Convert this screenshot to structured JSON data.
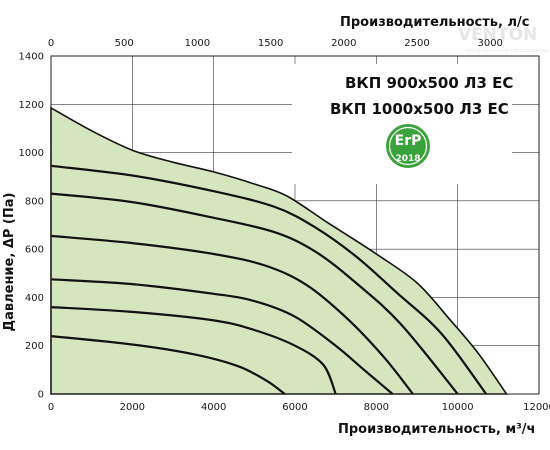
{
  "chart_data": {
    "type": "line",
    "title_lines": [
      "ВКП 900x500 Л3 ЕС",
      "ВКП 1000x500 Л3 ЕС"
    ],
    "xlabel": "Производительность, м³/ч",
    "x2label": "Производительность, л/с",
    "ylabel": "Давление, ΔР (Па)",
    "xlim": [
      0,
      12000
    ],
    "x2lim": [
      0,
      3333.33
    ],
    "ylim": [
      0,
      1400
    ],
    "x_ticks": [
      0,
      2000,
      4000,
      6000,
      8000,
      10000,
      12000
    ],
    "x2_ticks": [
      0,
      500,
      1000,
      1500,
      2000,
      2500,
      3000
    ],
    "y_ticks": [
      0,
      200,
      400,
      600,
      800,
      1000,
      1200,
      1400
    ],
    "grid": true,
    "fill_color": "#d5e6be",
    "line_color": "#111111",
    "badge": {
      "top": "ErP",
      "bottom": "2018",
      "color": "#3aa23a"
    },
    "watermark": {
      "main": "VENTON",
      "sub": "вентиляционное оборудование"
    },
    "envelope": [
      {
        "x": 0,
        "y": 1185
      },
      {
        "x": 1000,
        "y": 1090
      },
      {
        "x": 2000,
        "y": 1010
      },
      {
        "x": 3000,
        "y": 960
      },
      {
        "x": 4000,
        "y": 920
      },
      {
        "x": 5000,
        "y": 870
      },
      {
        "x": 5800,
        "y": 820
      },
      {
        "x": 6800,
        "y": 710
      },
      {
        "x": 8000,
        "y": 580
      },
      {
        "x": 9000,
        "y": 460
      },
      {
        "x": 9800,
        "y": 310
      },
      {
        "x": 10500,
        "y": 170
      },
      {
        "x": 11200,
        "y": 0
      }
    ],
    "series": [
      {
        "values": [
          {
            "x": 0,
            "y": 945
          },
          {
            "x": 2000,
            "y": 905
          },
          {
            "x": 4000,
            "y": 840
          },
          {
            "x": 5500,
            "y": 775
          },
          {
            "x": 6500,
            "y": 690
          },
          {
            "x": 7500,
            "y": 570
          },
          {
            "x": 8500,
            "y": 420
          },
          {
            "x": 9600,
            "y": 250
          },
          {
            "x": 10700,
            "y": 0
          }
        ]
      },
      {
        "values": [
          {
            "x": 0,
            "y": 830
          },
          {
            "x": 2000,
            "y": 795
          },
          {
            "x": 4000,
            "y": 730
          },
          {
            "x": 5500,
            "y": 670
          },
          {
            "x": 6500,
            "y": 590
          },
          {
            "x": 7500,
            "y": 460
          },
          {
            "x": 8600,
            "y": 290
          },
          {
            "x": 10000,
            "y": 0
          }
        ]
      },
      {
        "values": [
          {
            "x": 0,
            "y": 655
          },
          {
            "x": 2000,
            "y": 625
          },
          {
            "x": 4000,
            "y": 580
          },
          {
            "x": 5300,
            "y": 530
          },
          {
            "x": 6300,
            "y": 450
          },
          {
            "x": 7300,
            "y": 310
          },
          {
            "x": 8200,
            "y": 150
          },
          {
            "x": 8900,
            "y": 0
          }
        ]
      },
      {
        "values": [
          {
            "x": 0,
            "y": 475
          },
          {
            "x": 2000,
            "y": 455
          },
          {
            "x": 4000,
            "y": 415
          },
          {
            "x": 5000,
            "y": 385
          },
          {
            "x": 6000,
            "y": 320
          },
          {
            "x": 7000,
            "y": 200
          },
          {
            "x": 7700,
            "y": 100
          },
          {
            "x": 8400,
            "y": 0
          }
        ]
      },
      {
        "values": [
          {
            "x": 0,
            "y": 360
          },
          {
            "x": 2000,
            "y": 340
          },
          {
            "x": 4000,
            "y": 305
          },
          {
            "x": 5000,
            "y": 265
          },
          {
            "x": 6000,
            "y": 200
          },
          {
            "x": 6700,
            "y": 120
          },
          {
            "x": 7000,
            "y": 0
          }
        ]
      },
      {
        "values": [
          {
            "x": 0,
            "y": 240
          },
          {
            "x": 2000,
            "y": 205
          },
          {
            "x": 3500,
            "y": 165
          },
          {
            "x": 4600,
            "y": 115
          },
          {
            "x": 5300,
            "y": 55
          },
          {
            "x": 5750,
            "y": 0
          }
        ]
      }
    ]
  }
}
